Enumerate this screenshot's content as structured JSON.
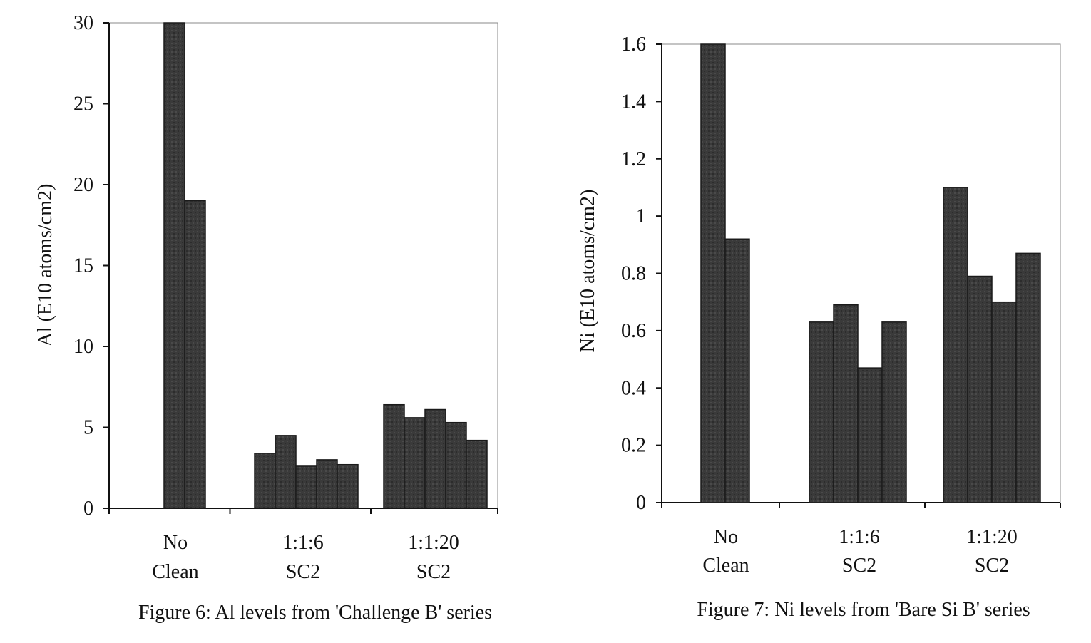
{
  "chart_data": [
    {
      "type": "bar",
      "caption": "Figure 6:  Al levels from 'Challenge B' series",
      "ylabel": "Al (E10 atoms/cm2)",
      "ylim": [
        0,
        30
      ],
      "yticks": [
        "0",
        "5",
        "10",
        "15",
        "20",
        "25",
        "30"
      ],
      "yticks_values": [
        0,
        5,
        10,
        15,
        20,
        25,
        30
      ],
      "categories": [
        {
          "line1": "No",
          "line2": "Clean",
          "values": [
            30,
            19
          ]
        },
        {
          "line1": "1:1:6",
          "line2": "SC2",
          "values": [
            3.4,
            4.5,
            2.6,
            3.0,
            2.7
          ]
        },
        {
          "line1": "1:1:20",
          "line2": "SC2",
          "values": [
            6.4,
            5.6,
            6.1,
            5.3,
            4.2
          ]
        }
      ],
      "grid": false,
      "bar_color": "#3a3a3a"
    },
    {
      "type": "bar",
      "caption": "Figure 7:  Ni levels from 'Bare Si B' series",
      "ylabel": "Ni (E10 atoms/cm2)",
      "ylim": [
        0,
        1.6
      ],
      "yticks": [
        "0",
        "0.2",
        "0.4",
        "0.6",
        "0.8",
        "1",
        "1.2",
        "1.4",
        "1.6"
      ],
      "yticks_values": [
        0,
        0.2,
        0.4,
        0.6,
        0.8,
        1.0,
        1.2,
        1.4,
        1.6
      ],
      "categories": [
        {
          "line1": "No",
          "line2": "Clean",
          "values": [
            1.6,
            0.92
          ]
        },
        {
          "line1": "1:1:6",
          "line2": "SC2",
          "values": [
            0.63,
            0.69,
            0.47,
            0.63
          ]
        },
        {
          "line1": "1:1:20",
          "line2": "SC2",
          "values": [
            1.1,
            0.79,
            0.7,
            0.87
          ]
        }
      ],
      "grid": false,
      "bar_color": "#3a3a3a"
    }
  ]
}
